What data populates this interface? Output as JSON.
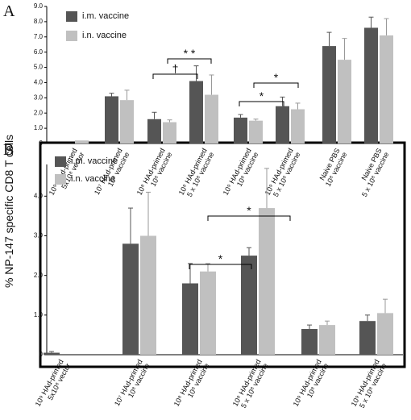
{
  "chart_data": [
    {
      "type": "bar",
      "panel_label": "A",
      "ylabel": "% NP-147 specific CD8 T cells",
      "categories": [
        [
          "10⁹ HAd-primed",
          "5x10⁸ vector"
        ],
        [
          "10⁷ HAd-primed",
          "10⁸ vaccine"
        ],
        [
          "10⁸ HAd-primed",
          "10⁸ vaccine"
        ],
        [
          "10⁸ HAd-primed",
          "5 x 10⁸ vaccine"
        ],
        [
          "10⁹ HAd-primed",
          "10⁸ vaccine"
        ],
        [
          "10⁹ HAd-primed",
          "5 x 10⁸ vaccine"
        ],
        [
          "Naive PBS",
          "10⁸ vaccine"
        ],
        [
          "Naive PBS",
          "5 x 10⁸ vaccine"
        ]
      ],
      "series": [
        {
          "name": "i.m. vaccine",
          "color": "#555555",
          "values": [
            null,
            3.1,
            1.6,
            4.1,
            1.7,
            2.45,
            6.4,
            7.6
          ],
          "errors": [
            null,
            0.2,
            0.45,
            1.0,
            0.2,
            0.6,
            0.9,
            0.7
          ]
        },
        {
          "name": "i.n. vaccine",
          "color": "#c0c0c0",
          "values": [
            0.2,
            2.85,
            1.4,
            3.2,
            1.5,
            2.25,
            5.5,
            7.1
          ],
          "errors": [
            null,
            0.65,
            0.15,
            1.3,
            0.1,
            0.4,
            1.4,
            1.1
          ]
        }
      ],
      "ylim": [
        0,
        9
      ],
      "yticks": [
        0,
        {
          "value": 1,
          "label": "1.0"
        },
        {
          "value": 2,
          "label": "2.0"
        },
        {
          "value": 3,
          "label": "3.0"
        },
        {
          "value": 4,
          "label": "4.0"
        },
        {
          "value": 5,
          "label": "5.0"
        },
        {
          "value": 6,
          "label": "6.0"
        },
        {
          "value": 7,
          "label": "7.0"
        },
        {
          "value": 8,
          "label": "8.0"
        },
        {
          "value": 9,
          "label": "9.0"
        }
      ],
      "annotations": [
        "* *",
        "†",
        "*",
        "*"
      ]
    },
    {
      "type": "bar",
      "panel_label": "B",
      "categories": [
        [
          "10⁹ HAd-primed",
          "5x10⁸ vector"
        ],
        [
          "10⁷ HAd-primed",
          "10⁸ vaccine"
        ],
        [
          "10⁸ HAd-primed",
          "10⁸ vaccine"
        ],
        [
          "10⁸ HAd-primed",
          "5 x 10⁸ vaccine"
        ],
        [
          "10⁹ HAd-primed",
          "10⁸ vaccine"
        ],
        [
          "10⁹ HAd-primed",
          "5 x 10⁸ vaccine"
        ]
      ],
      "series": [
        {
          "name": "i.m. vaccine",
          "color": "#555555",
          "values": [
            0.05,
            2.8,
            1.8,
            2.5,
            0.65,
            0.85
          ],
          "errors": [
            0.03,
            0.9,
            0.5,
            0.2,
            0.1,
            0.15
          ]
        },
        {
          "name": "i.n. vaccine",
          "color": "#c0c0c0",
          "values": [
            null,
            3.0,
            2.1,
            3.7,
            0.75,
            1.05
          ],
          "errors": [
            null,
            1.1,
            0.2,
            1.0,
            0.1,
            0.35
          ]
        }
      ],
      "ylim": [
        0,
        4.8
      ],
      "yticks": [
        0,
        {
          "value": 1,
          "label": "1.0"
        },
        {
          "value": 2,
          "label": "2.0"
        },
        {
          "value": 3,
          "label": "3.0"
        },
        {
          "value": 4,
          "label": "4.0"
        }
      ],
      "annotations": [
        "*",
        "*"
      ]
    }
  ]
}
